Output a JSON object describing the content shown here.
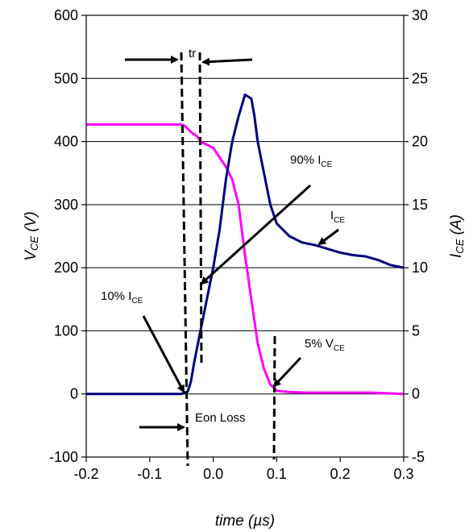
{
  "chart_data": {
    "type": "line",
    "title": "",
    "xlabel": "time (µs)",
    "ylabel_left": {
      "main": "V",
      "sub": "CE",
      "unit": " (V)"
    },
    "ylabel_right": {
      "main": "I",
      "sub": "CE",
      "unit": " (A)"
    },
    "xlim": [
      -0.2,
      0.3
    ],
    "ylim_left": [
      -100,
      600
    ],
    "ylim_right": [
      -5,
      30
    ],
    "x_ticks": [
      "-0.2",
      "-0.1",
      "0.0",
      "0.1",
      "0.2",
      "0.3"
    ],
    "y_left_ticks": [
      "-100",
      "0",
      "100",
      "200",
      "300",
      "400",
      "500",
      "600"
    ],
    "y_right_ticks": [
      "-5",
      "0",
      "5",
      "10",
      "15",
      "20",
      "25",
      "30"
    ],
    "grid": "horizontal",
    "series": [
      {
        "axis": "left",
        "color": "#ff00ff",
        "x": [
          -0.2,
          -0.15,
          -0.1,
          -0.05,
          -0.045,
          -0.035,
          -0.025,
          -0.02,
          -0.01,
          0.0,
          0.01,
          0.02,
          0.025,
          0.03,
          0.04,
          0.05,
          0.06,
          0.07,
          0.08,
          0.09,
          0.1,
          0.12,
          0.15,
          0.2,
          0.25,
          0.3
        ],
        "values": [
          427,
          427,
          427,
          427,
          425,
          415,
          408,
          400,
          395,
          390,
          375,
          360,
          350,
          340,
          300,
          220,
          150,
          80,
          40,
          15,
          5,
          3,
          2,
          2,
          2,
          0
        ]
      },
      {
        "axis": "right",
        "color": "#000080",
        "x": [
          -0.2,
          -0.15,
          -0.1,
          -0.05,
          -0.04,
          -0.035,
          -0.03,
          -0.02,
          -0.01,
          0.0,
          0.01,
          0.02,
          0.03,
          0.04,
          0.05,
          0.06,
          0.065,
          0.07,
          0.08,
          0.09,
          0.1,
          0.12,
          0.14,
          0.16,
          0.18,
          0.2,
          0.22,
          0.24,
          0.26,
          0.28,
          0.3
        ],
        "values": [
          0,
          0,
          0,
          0,
          0.2,
          1,
          2.5,
          5,
          7.5,
          10,
          13,
          17,
          20,
          22,
          23.7,
          23.4,
          22,
          20,
          17.5,
          15,
          13.5,
          12.5,
          12,
          11.8,
          11.5,
          11.2,
          11,
          10.9,
          10.6,
          10.2,
          10
        ]
      }
    ],
    "annotations": {
      "tr": "tr",
      "eon": "Eon Loss",
      "ice90": {
        "prefix": "90%  I",
        "sub": "CE"
      },
      "ice": {
        "prefix": "I",
        "sub": "CE"
      },
      "ice10": {
        "prefix": "10% I",
        "sub": "CE"
      },
      "vce5": {
        "prefix": "5% V",
        "sub": "CE"
      }
    }
  }
}
